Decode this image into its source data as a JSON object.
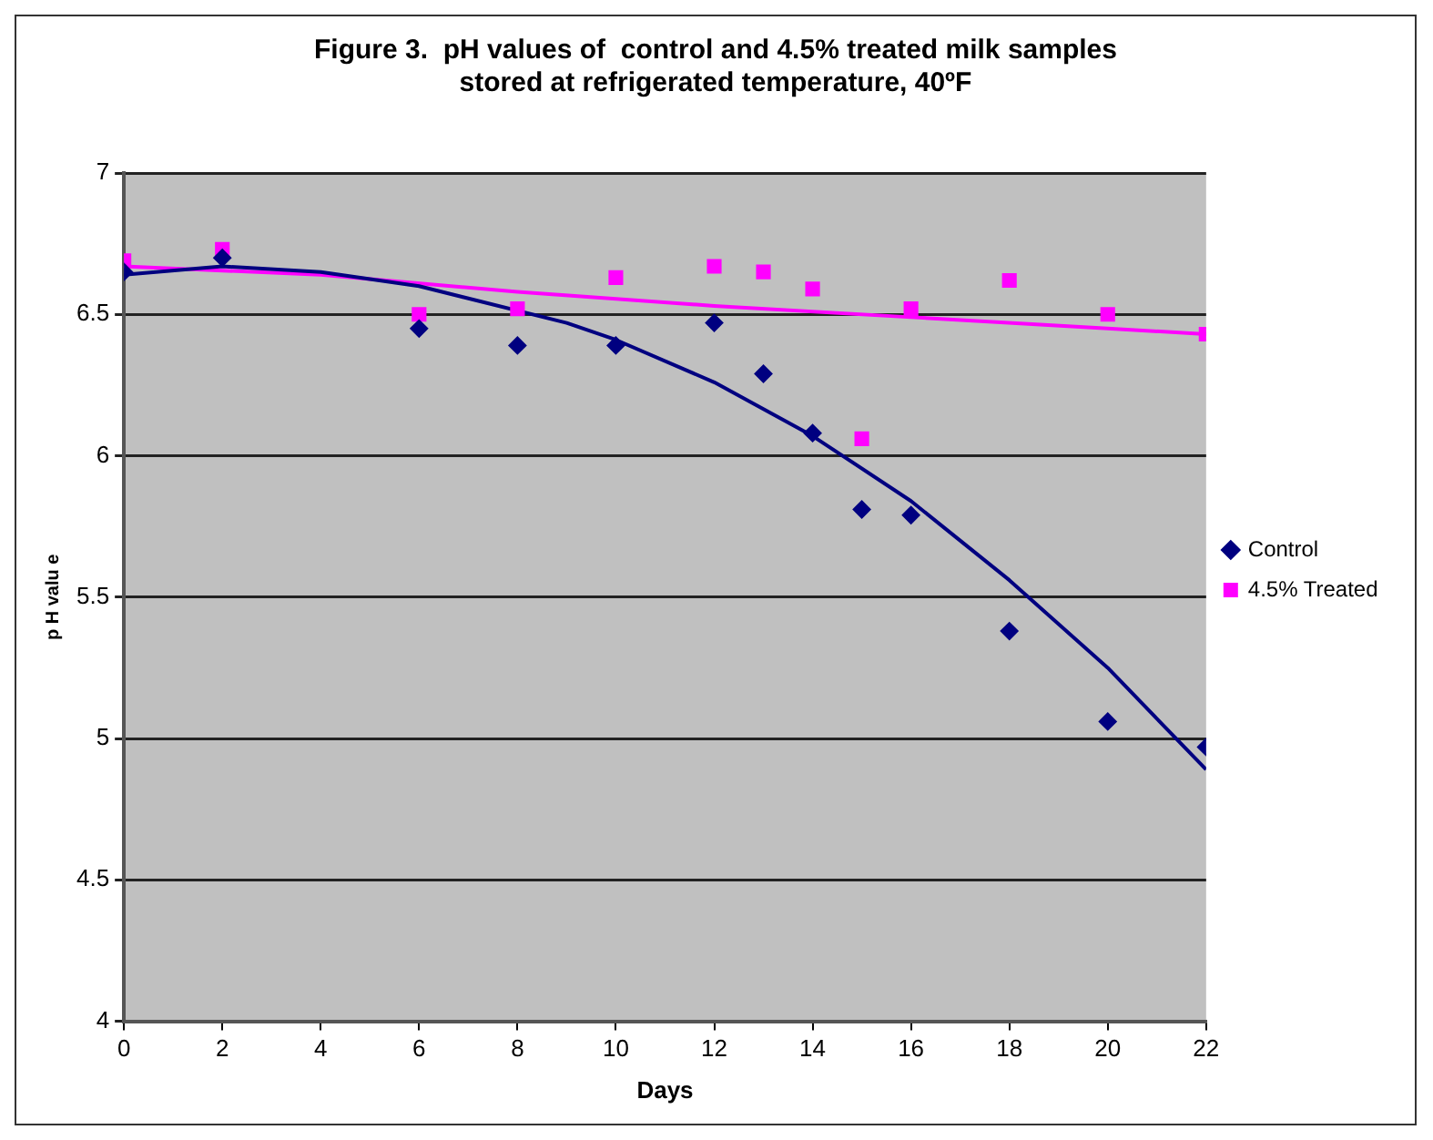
{
  "chart_data": {
    "type": "scatter",
    "title": "Figure 3.  pH values of  control and 4.5% treated milk samples\nstored at refrigerated temperature, 40ºF",
    "xlabel": "Days",
    "ylabel": "p H valu e",
    "xlim": [
      0,
      22
    ],
    "xticks": [
      0,
      2,
      4,
      6,
      8,
      10,
      12,
      14,
      16,
      18,
      20,
      22
    ],
    "ylim": [
      4,
      7
    ],
    "yticks": [
      4,
      4.5,
      5,
      5.5,
      6,
      6.5,
      7
    ],
    "grid": "y",
    "legend": "right",
    "series": [
      {
        "name": "Control",
        "color": "#000080",
        "marker": "diamond",
        "x": [
          0,
          2,
          6,
          8,
          10,
          12,
          13,
          14,
          15,
          16,
          18,
          20,
          22
        ],
        "values": [
          6.65,
          6.7,
          6.45,
          6.39,
          6.39,
          6.47,
          6.29,
          6.08,
          5.81,
          5.79,
          5.38,
          5.06,
          4.97
        ]
      },
      {
        "name": "4.5% Treated",
        "color": "#ff00ff",
        "marker": "square",
        "x": [
          0,
          2,
          6,
          8,
          10,
          12,
          13,
          14,
          15,
          16,
          18,
          20,
          22
        ],
        "values": [
          6.69,
          6.73,
          6.5,
          6.52,
          6.63,
          6.67,
          6.65,
          6.59,
          6.06,
          6.52,
          6.62,
          6.5,
          6.43
        ]
      },
      {
        "type": "line",
        "color": "#000080",
        "marker": "none",
        "x": [
          0,
          2,
          4,
          6,
          9,
          10,
          12,
          14,
          16,
          18,
          20,
          22
        ],
        "values": [
          6.64,
          6.67,
          6.65,
          6.6,
          6.47,
          6.41,
          6.26,
          6.07,
          5.84,
          5.56,
          5.25,
          4.89
        ]
      },
      {
        "type": "line",
        "color": "#ff00ff",
        "marker": "none",
        "x": [
          0,
          4,
          8,
          12,
          16,
          20,
          22
        ],
        "values": [
          6.67,
          6.64,
          6.58,
          6.53,
          6.49,
          6.45,
          6.43
        ]
      }
    ]
  }
}
